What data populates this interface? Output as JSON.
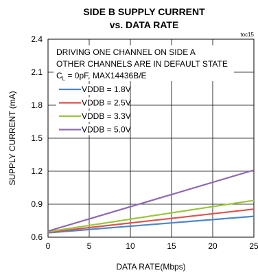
{
  "chart_data": {
    "type": "line",
    "title": "SIDE B SUPPLY CURRENT",
    "subtitle": "vs. DATA RATE",
    "figure_code": "toc15",
    "xlabel": "DATA RATE(Mbps)",
    "ylabel": "SUPPLY CURRENT (mA)",
    "xlim": [
      0,
      25
    ],
    "ylim": [
      0.6,
      2.4
    ],
    "xticks": [
      "0",
      "5",
      "10",
      "15",
      "20",
      "25"
    ],
    "yticks": [
      "0.6",
      "0.9",
      "1.2",
      "1.5",
      "1.8",
      "2.1",
      "2.4"
    ],
    "grid": true,
    "annotations": {
      "line1": "DRIVING ONE CHANNEL ON SIDE A",
      "line2": "OTHER CHANNELS ARE IN DEFAULT STATE",
      "line3_prefix": "C",
      "line3_sub": "L",
      "line3_suffix": " = 0pF, MAX14436B/E"
    },
    "legend_position": "top-left",
    "series": [
      {
        "name": "VDDB = 1.8V",
        "color": "#4f86c6",
        "x": [
          0,
          25
        ],
        "y": [
          0.64,
          0.79
        ]
      },
      {
        "name": "VDDB = 2.5V",
        "color": "#d9534f",
        "x": [
          0,
          25
        ],
        "y": [
          0.645,
          0.855
        ]
      },
      {
        "name": "VDDB = 3.3V",
        "color": "#9bc53d",
        "x": [
          0,
          25
        ],
        "y": [
          0.65,
          0.935
        ]
      },
      {
        "name": "VDDB = 5.0V",
        "color": "#8e6bb0",
        "x": [
          0,
          25
        ],
        "y": [
          0.655,
          1.21
        ]
      }
    ]
  }
}
